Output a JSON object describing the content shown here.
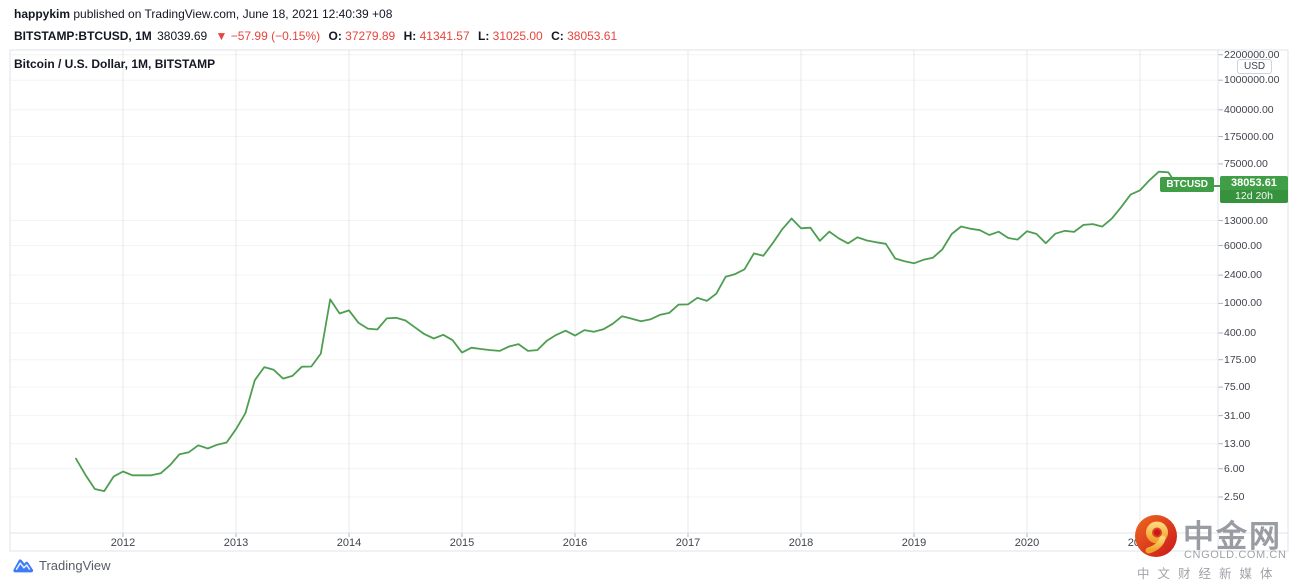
{
  "header": {
    "author": "happykim",
    "byline_rest": " published on TradingView.com, June 18, 2021 12:40:39 +08",
    "symbol": "BITSTAMP:BTCUSD, 1M",
    "last": "38039.69",
    "change": "▼ −57.99 (−0.15%)",
    "o_label": "O:",
    "o_value": "37279.89",
    "h_label": "H:",
    "h_value": "41341.57",
    "l_label": "L:",
    "l_value": "31025.00",
    "c_label": "C:",
    "c_value": "38053.61"
  },
  "chart": {
    "title": "Bitcoin / U.S. Dollar, 1M, BITSTAMP",
    "axis_unit": "USD",
    "price_tag": {
      "symbol": "BTCUSD",
      "price": "38053.61",
      "countdown": "12d 20h"
    }
  },
  "chart_data": {
    "type": "line",
    "title": "Bitcoin / U.S. Dollar, 1M, BITSTAMP",
    "scale": "log",
    "x_start": "2011-08",
    "x_interval": "1M",
    "close": [
      8.2,
      5.0,
      3.2,
      3.0,
      4.7,
      5.5,
      4.9,
      4.9,
      4.9,
      5.2,
      6.7,
      9.4,
      10.0,
      12.4,
      11.2,
      12.6,
      13.5,
      20.4,
      33.4,
      93.0,
      139.2,
      128.0,
      97.5,
      106.2,
      141.0,
      141.9,
      211.2,
      1131.0,
      732.0,
      806.1,
      550.1,
      458.0,
      446.0,
      627.9,
      640.0,
      589.5,
      478.0,
      386.9,
      338.0,
      378.0,
      320.0,
      217.9,
      254.0,
      244.2,
      236.0,
      230.2,
      263.1,
      284.0,
      230.1,
      236.0,
      314.2,
      377.3,
      430.0,
      368.8,
      437.7,
      416.7,
      448.3,
      531.4,
      673.3,
      624.7,
      575.5,
      609.7,
      700.0,
      745.7,
      963.4,
      970.4,
      1190.0,
      1080.0,
      1351.9,
      2286.4,
      2480.6,
      2875.3,
      4703.4,
      4360.6,
      6468.4,
      9916.5,
      13850.4,
      10221.1,
      10397.9,
      6938.2,
      9240.0,
      7494.2,
      6404.0,
      7735.7,
      7011.2,
      6625.6,
      6317.6,
      4017.3,
      3689.6,
      3457.8,
      3854.8,
      4105.4,
      5320.8,
      8574.5,
      10817.2,
      10085.0,
      9630.7,
      8310.2,
      9199.6,
      7569.6,
      7193.6,
      9350.5,
      8599.5,
      6438.6,
      8658.6,
      9461.1,
      9137.0,
      11351.6,
      11655.0,
      10784.5,
      13797.3,
      19698.1,
      28990.1,
      33114.4,
      45164.0,
      58918.8,
      57750.2,
      37332.9,
      38053.61
    ],
    "last_close": 38053.61,
    "y_axis_ticks": [
      "2200000.00",
      "1000000.00",
      "400000.00",
      "175000.00",
      "75000.00",
      "13000.00",
      "6000.00",
      "2400.00",
      "1000.00",
      "400.00",
      "175.00",
      "75.00",
      "31.00",
      "13.00",
      "6.00",
      "2.50"
    ],
    "x_axis_ticks": [
      "2012",
      "2013",
      "2014",
      "2015",
      "2016",
      "2017",
      "2018",
      "2019",
      "2020",
      "2021"
    ],
    "ylabel": "USD",
    "grid": true,
    "line_color": "#4e9e52",
    "label_color": "#3f9e46",
    "countdown_color": "#37923e"
  },
  "footer": {
    "tradingview": "TradingView"
  },
  "watermark": {
    "name": "中金网",
    "domain": "CNGOLD.COM.CN",
    "tagline": "中文财经新媒体"
  }
}
